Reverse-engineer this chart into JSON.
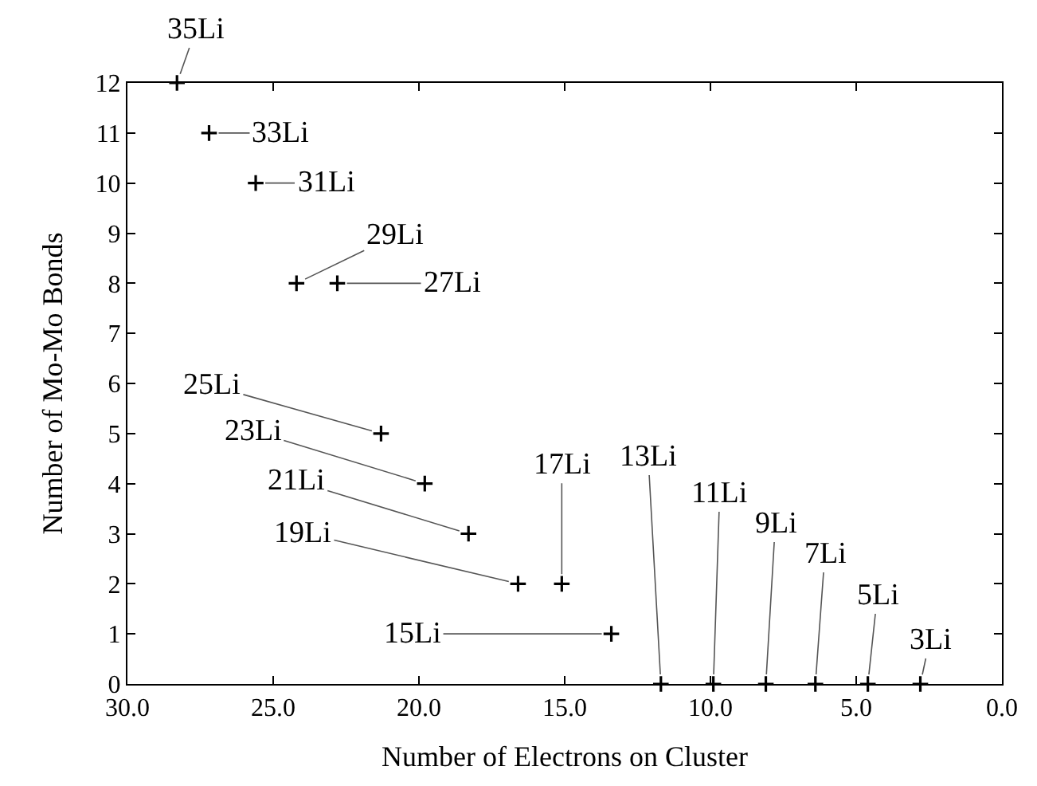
{
  "chart_data": {
    "type": "scatter",
    "xlabel": "Number of Electrons on Cluster",
    "ylabel": "Number of Mo-Mo Bonds",
    "x": [
      28.3,
      27.2,
      25.6,
      24.2,
      22.8,
      21.3,
      19.8,
      18.3,
      16.6,
      15.1,
      13.4,
      11.7,
      9.9,
      8.1,
      6.4,
      4.6,
      2.8
    ],
    "series": [
      {
        "color": "#000000",
        "values": [
          12,
          11,
          10,
          8,
          8,
          5,
          4,
          3,
          2,
          2,
          1,
          0,
          0,
          0,
          0,
          0,
          0
        ]
      }
    ],
    "marker": "cross",
    "xlim": [
      30,
      0
    ],
    "xticks": [
      {
        "value": 30,
        "label": "30.0"
      },
      {
        "value": 25,
        "label": "25.0"
      },
      {
        "value": 20,
        "label": "20.0"
      },
      {
        "value": 15,
        "label": "15.0"
      },
      {
        "value": 10,
        "label": "10.0"
      },
      {
        "value": 5,
        "label": "5.0"
      },
      {
        "value": 0,
        "label": "0.0"
      }
    ],
    "ylim": [
      0,
      12
    ],
    "yticks": [
      0,
      1,
      2,
      3,
      4,
      5,
      6,
      7,
      8,
      9,
      10,
      11,
      12
    ],
    "annotations": [
      {
        "text": "35Li",
        "x": 28.3,
        "y": 12
      },
      {
        "text": "33Li",
        "x": 27.2,
        "y": 11
      },
      {
        "text": "31Li",
        "x": 25.6,
        "y": 10
      },
      {
        "text": "29Li",
        "x": 24.2,
        "y": 8
      },
      {
        "text": "27Li",
        "x": 22.8,
        "y": 8
      },
      {
        "text": "25Li",
        "x": 21.3,
        "y": 5
      },
      {
        "text": "23Li",
        "x": 19.8,
        "y": 4
      },
      {
        "text": "21Li",
        "x": 18.3,
        "y": 3
      },
      {
        "text": "19Li",
        "x": 16.6,
        "y": 2
      },
      {
        "text": "17Li",
        "x": 15.1,
        "y": 2
      },
      {
        "text": "15Li",
        "x": 13.4,
        "y": 1
      },
      {
        "text": "13Li",
        "x": 11.7,
        "y": 0
      },
      {
        "text": "11Li",
        "x": 9.9,
        "y": 0
      },
      {
        "text": "9Li",
        "x": 8.1,
        "y": 0
      },
      {
        "text": "7Li",
        "x": 6.4,
        "y": 0
      },
      {
        "text": "5Li",
        "x": 4.6,
        "y": 0
      },
      {
        "text": "3Li",
        "x": 2.8,
        "y": 0
      }
    ]
  }
}
